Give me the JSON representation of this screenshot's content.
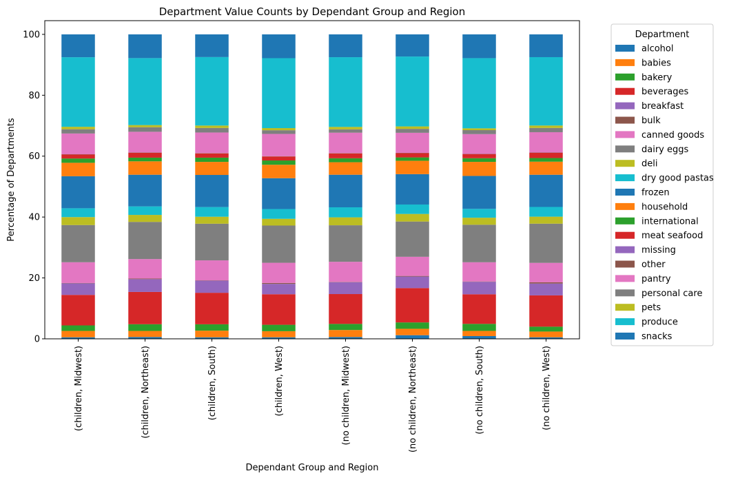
{
  "chart_data": {
    "type": "bar",
    "stacked": true,
    "title": "Department Value Counts by Dependant Group and Region",
    "xlabel": "Dependant Group and Region",
    "ylabel": "Percentage of Departments",
    "ylim": [
      0,
      104.5
    ],
    "yticks": [
      0,
      20,
      40,
      60,
      80,
      100
    ],
    "grid": false,
    "legend": {
      "title": "Department",
      "placement": "outside-right"
    },
    "categories": [
      "(children, Midwest)",
      "(children, Northeast)",
      "(children, South)",
      "(children, West)",
      "(no children, Midwest)",
      "(no children, Northeast)",
      "(no children, South)",
      "(no children, West)"
    ],
    "series": [
      {
        "name": "alcohol",
        "color": "#1f77b4",
        "values": [
          0.5,
          0.6,
          0.5,
          0.5,
          0.6,
          1.2,
          0.9,
          0.5
        ]
      },
      {
        "name": "babies",
        "color": "#ff7f0e",
        "values": [
          2.1,
          2.0,
          2.2,
          2.0,
          2.3,
          2.1,
          1.7,
          1.9
        ]
      },
      {
        "name": "bakery",
        "color": "#2ca02c",
        "values": [
          1.8,
          2.2,
          2.1,
          2.1,
          2.0,
          2.1,
          2.3,
          1.6
        ]
      },
      {
        "name": "beverages",
        "color": "#d62728",
        "values": [
          10.0,
          10.6,
          10.4,
          10.0,
          9.8,
          11.3,
          9.7,
          10.3
        ]
      },
      {
        "name": "breakfast",
        "color": "#9467bd",
        "values": [
          3.8,
          4.2,
          4.0,
          3.4,
          3.9,
          3.8,
          4.1,
          3.9
        ]
      },
      {
        "name": "bulk",
        "color": "#8c564b",
        "values": [
          0.1,
          0.2,
          0.1,
          0.3,
          0.1,
          0.2,
          0.1,
          0.4
        ]
      },
      {
        "name": "canned goods",
        "color": "#e377c2",
        "values": [
          6.8,
          6.4,
          6.6,
          6.6,
          6.6,
          6.3,
          6.3,
          6.4
        ]
      },
      {
        "name": "dairy eggs",
        "color": "#7f7f7f",
        "values": [
          12.2,
          12.2,
          12.1,
          12.2,
          12.0,
          11.6,
          12.3,
          12.9
        ]
      },
      {
        "name": "deli",
        "color": "#bcbd22",
        "values": [
          2.6,
          2.3,
          2.3,
          2.2,
          2.6,
          2.5,
          2.3,
          2.3
        ]
      },
      {
        "name": "dry good pastas",
        "color": "#17becf",
        "values": [
          2.9,
          2.8,
          3.2,
          3.2,
          3.3,
          3.1,
          2.9,
          3.2
        ]
      },
      {
        "name": "frozen",
        "color": "#1f77b4",
        "values": [
          10.5,
          10.4,
          10.6,
          10.1,
          10.7,
          10.0,
          10.8,
          10.6
        ]
      },
      {
        "name": "household",
        "color": "#ff7f0e",
        "values": [
          4.4,
          4.4,
          4.3,
          4.4,
          4.1,
          4.4,
          4.6,
          4.3
        ]
      },
      {
        "name": "international",
        "color": "#2ca02c",
        "values": [
          1.4,
          1.2,
          1.4,
          1.4,
          1.3,
          1.1,
          1.2,
          1.2
        ]
      },
      {
        "name": "meat seafood",
        "color": "#d62728",
        "values": [
          1.3,
          1.6,
          1.4,
          1.3,
          1.6,
          1.4,
          1.3,
          1.7
        ]
      },
      {
        "name": "missing",
        "color": "#9467bd",
        "values": [
          0.0,
          0.0,
          0.0,
          0.0,
          0.0,
          0.0,
          0.0,
          0.0
        ]
      },
      {
        "name": "other",
        "color": "#8c564b",
        "values": [
          0.1,
          0.1,
          0.1,
          0.1,
          0.1,
          0.1,
          0.1,
          0.1
        ]
      },
      {
        "name": "pantry",
        "color": "#e377c2",
        "values": [
          6.8,
          6.8,
          6.8,
          7.3,
          6.7,
          6.6,
          6.5,
          6.7
        ]
      },
      {
        "name": "personal care",
        "color": "#7f7f7f",
        "values": [
          1.4,
          1.5,
          1.5,
          1.2,
          1.1,
          1.3,
          1.3,
          1.4
        ]
      },
      {
        "name": "pets",
        "color": "#bcbd22",
        "values": [
          0.8,
          0.7,
          0.8,
          0.7,
          0.8,
          0.8,
          0.6,
          0.8
        ]
      },
      {
        "name": "produce",
        "color": "#17becf",
        "values": [
          22.8,
          22.0,
          22.6,
          22.9,
          22.9,
          23.0,
          23.0,
          22.5
        ]
      },
      {
        "name": "snacks",
        "color": "#1f77b4",
        "values": [
          7.5,
          7.8,
          7.5,
          7.8,
          7.5,
          7.3,
          7.8,
          7.5
        ]
      }
    ]
  }
}
